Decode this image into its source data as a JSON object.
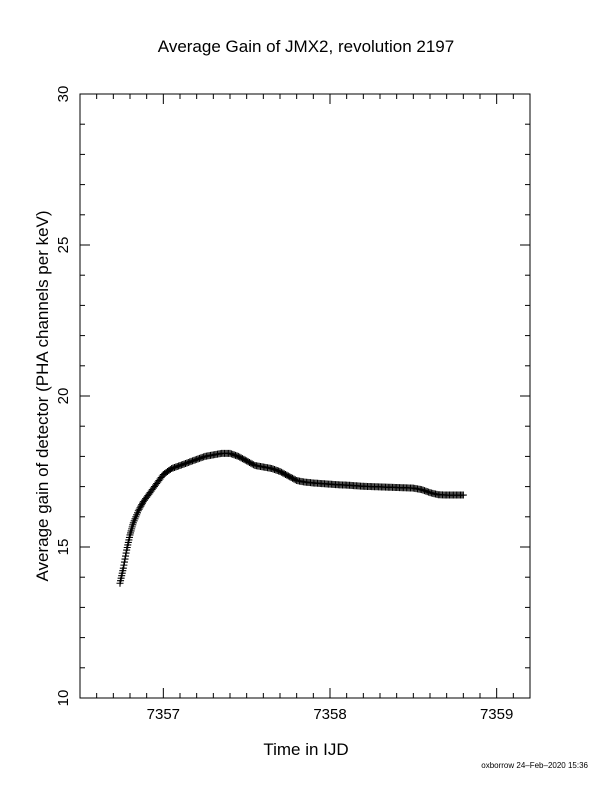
{
  "chart_data": {
    "type": "scatter",
    "title": "Average Gain of JMX2, revolution 2197",
    "xlabel": "Time in IJD",
    "ylabel": "Average gain of detector (PHA channels per keV)",
    "xlim": [
      7356.5,
      7359.2
    ],
    "ylim": [
      10,
      30
    ],
    "x_major_ticks": [
      7357,
      7358,
      7359
    ],
    "x_tick_labels": [
      "7357",
      "7358",
      "7359"
    ],
    "x_minor_step": 0.1,
    "y_major_ticks": [
      10,
      15,
      20,
      25,
      30
    ],
    "y_tick_labels": [
      "10",
      "15",
      "20",
      "25",
      "30"
    ],
    "y_minor_step": 1,
    "grid": false,
    "marker": "plus",
    "series": [
      {
        "x": [
          7356.74,
          7356.76,
          7356.78,
          7356.8,
          7356.82,
          7356.85,
          7356.88,
          7356.92,
          7356.96,
          7357.0,
          7357.05,
          7357.1,
          7357.15,
          7357.2,
          7357.25,
          7357.3,
          7357.35,
          7357.4,
          7357.45,
          7357.5,
          7357.55,
          7357.6,
          7357.65,
          7357.7,
          7357.75,
          7357.8,
          7357.85,
          7357.9,
          7357.95,
          7358.0,
          7358.05,
          7358.1,
          7358.15,
          7358.2,
          7358.25,
          7358.3,
          7358.35,
          7358.4,
          7358.45,
          7358.5,
          7358.55,
          7358.6,
          7358.65,
          7358.7,
          7358.75,
          7358.8
        ],
        "y": [
          13.8,
          14.3,
          14.9,
          15.4,
          15.8,
          16.2,
          16.5,
          16.8,
          17.1,
          17.4,
          17.6,
          17.7,
          17.8,
          17.9,
          18.0,
          18.05,
          18.1,
          18.1,
          18.0,
          17.85,
          17.7,
          17.65,
          17.6,
          17.5,
          17.35,
          17.2,
          17.15,
          17.12,
          17.1,
          17.08,
          17.06,
          17.05,
          17.03,
          17.01,
          17.0,
          16.99,
          16.98,
          16.97,
          16.96,
          16.95,
          16.9,
          16.8,
          16.73,
          16.72,
          16.72,
          16.72
        ]
      }
    ]
  },
  "footer": {
    "stamp": "oxborrow 24–Feb–2020 15:36"
  }
}
